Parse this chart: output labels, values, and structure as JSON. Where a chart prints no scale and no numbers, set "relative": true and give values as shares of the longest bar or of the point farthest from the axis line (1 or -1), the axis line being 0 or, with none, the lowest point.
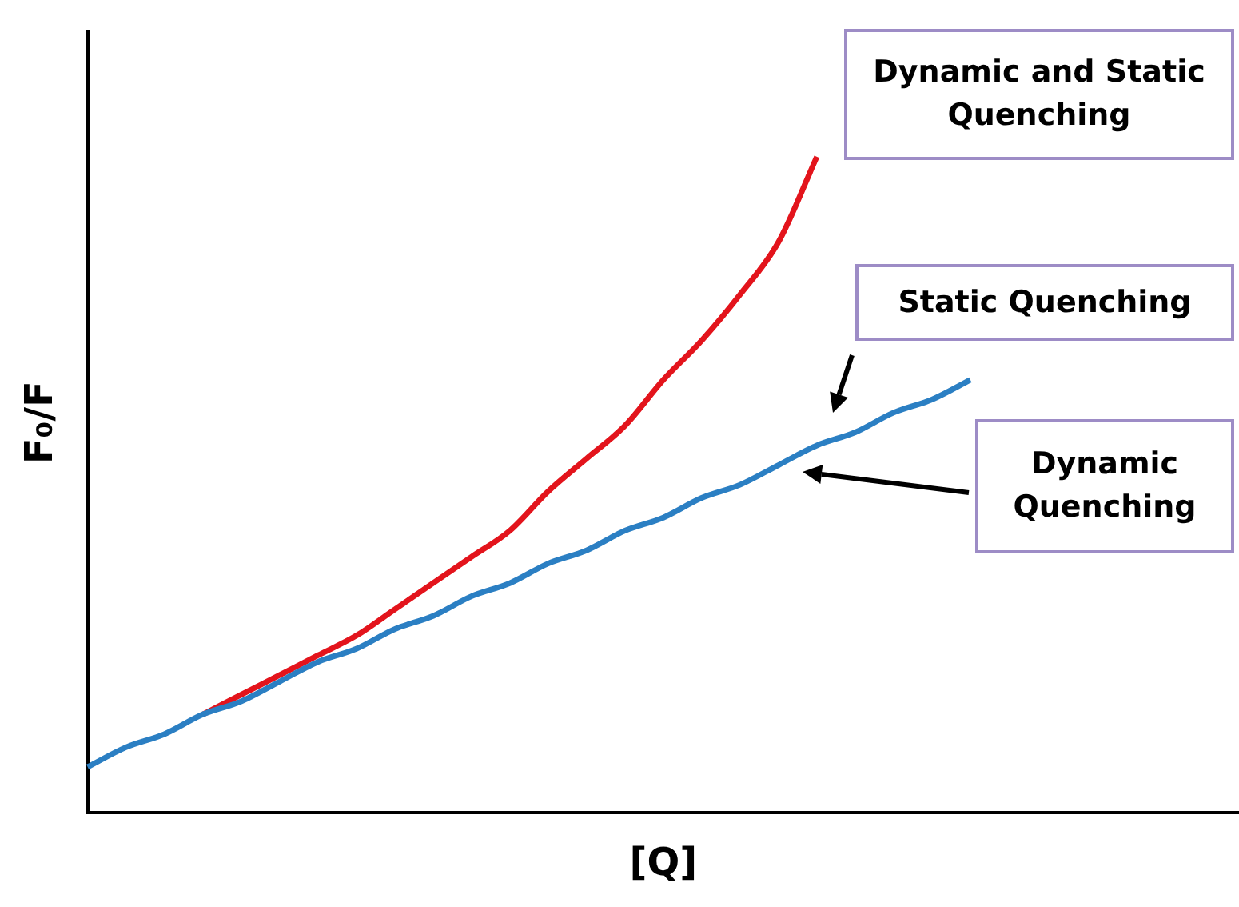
{
  "chart_data": {
    "type": "line",
    "relative": true,
    "xlabel": "[Q]",
    "ylabel": "F₀/F",
    "categories": [
      null,
      null,
      null,
      null,
      null,
      null,
      null,
      null,
      null,
      null,
      null,
      null,
      null,
      null,
      null,
      null,
      null,
      null,
      null,
      null,
      null,
      null,
      null,
      null,
      null,
      null,
      null,
      null,
      null,
      null,
      null
    ],
    "series": [
      {
        "color": "#e3141c",
        "values": [
          null,
          null,
          null,
          0.15,
          0.18,
          0.21,
          0.24,
          0.27,
          0.31,
          0.35,
          0.39,
          0.43,
          0.49,
          0.54,
          0.59,
          0.66,
          0.72,
          0.79,
          0.87,
          1,
          null,
          null,
          null,
          null,
          null,
          null,
          null,
          null,
          null,
          null,
          null
        ]
      },
      {
        "color": "#2b7fc3",
        "values": [
          0.07,
          0.1,
          0.12,
          0.15,
          0.17,
          0.2,
          0.23,
          0.25,
          0.28,
          0.3,
          0.33,
          0.35,
          0.38,
          0.4,
          0.43,
          0.45,
          0.48,
          0.5,
          0.53,
          0.56,
          0.58,
          0.61,
          0.63,
          0.66,
          null,
          null,
          null,
          null,
          null,
          null,
          null
        ]
      }
    ],
    "annotations": [
      "Dynamic and Static Quenching",
      "Static Quenching",
      "Dynamic Quenching"
    ]
  }
}
